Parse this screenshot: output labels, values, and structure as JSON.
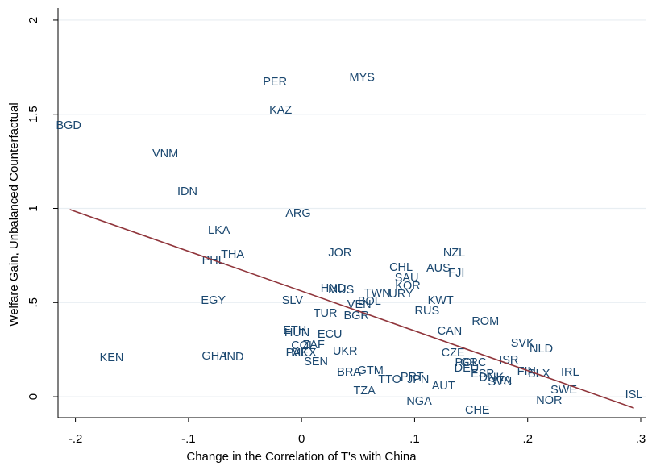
{
  "chart_data": {
    "type": "scatter",
    "x_label": "Change in the Correlation of T's with China",
    "y_label": "Welfare Gain, Unbalanced Counterfactual",
    "xlim": [
      -0.2154,
      0.305
    ],
    "ylim": [
      -0.111,
      2.064
    ],
    "xticks": [
      {
        "value": -0.2,
        "label": "-.2"
      },
      {
        "value": -0.1,
        "label": "-.1"
      },
      0,
      {
        "value": 0.1,
        "label": ".1"
      },
      {
        "value": 0.2,
        "label": ".2"
      },
      {
        "value": 0.3,
        "label": ".3"
      }
    ],
    "yticks": [
      0,
      {
        "value": 0.5,
        "label": ".5"
      },
      1,
      1.5,
      2
    ],
    "grid": true,
    "color": "#1a476f",
    "fit_line": {
      "color": "#90353b",
      "x": [
        -0.205,
        0.294
      ],
      "y": [
        0.994,
        -0.06
      ]
    },
    "labels": [
      "BGD",
      "PER",
      "MYS",
      "KAZ",
      "VNM",
      "IDN",
      "ARG",
      "LKA",
      "THA",
      "PHL",
      "JOR",
      "NZL",
      "CHL",
      "AUS",
      "FJI",
      "SAU",
      "KOR",
      "HND",
      "MUS",
      "TWN",
      "URY",
      "BOL",
      "VEN",
      "SLV",
      "EGY",
      "KWT",
      "RUS",
      "TUR",
      "BGR",
      "ROM",
      "CAN",
      "ETH",
      "HUN",
      "ECU",
      "SVK",
      "NLD",
      "COL",
      "ZAF",
      "MEX",
      "PAK",
      "UKR",
      "KEN",
      "GHA",
      "IND",
      "CZE",
      "SEN",
      "ISR",
      "POL",
      "GRC",
      "DEU",
      "ESP",
      "BRA",
      "GTM",
      "IRL",
      "FIN",
      "BLX",
      "TTO",
      "PRT",
      "JPN",
      "SVN",
      "DNK",
      "ITA",
      "AUT",
      "TZA",
      "SWE",
      "ISL",
      "NOR",
      "NGA",
      "CHE"
    ],
    "x": [
      -0.206,
      -0.0235,
      0.0535,
      -0.0185,
      -0.1205,
      -0.101,
      -0.003,
      -0.073,
      -0.061,
      -0.078,
      0.034,
      0.135,
      0.088,
      0.121,
      0.137,
      0.093,
      0.094,
      0.028,
      0.035,
      0.067,
      0.088,
      0.06,
      0.051,
      -0.008,
      -0.078,
      0.123,
      0.111,
      0.021,
      0.0485,
      0.1626,
      0.131,
      -0.006,
      -0.004,
      0.025,
      0.1954,
      0.212,
      0.0014,
      0.0107,
      0.002,
      -0.004,
      0.0385,
      -0.168,
      -0.077,
      -0.06,
      0.134,
      0.0128,
      0.1833,
      0.146,
      0.152,
      0.146,
      0.16,
      0.042,
      0.061,
      0.2375,
      0.199,
      0.21,
      0.078,
      0.0977,
      0.103,
      0.1755,
      0.168,
      0.178,
      0.1255,
      0.0556,
      0.232,
      0.294,
      0.219,
      0.104,
      0.1555
    ],
    "y": [
      1.439,
      1.67,
      1.692,
      1.52,
      1.289,
      1.088,
      0.972,
      0.882,
      0.754,
      0.724,
      0.762,
      0.762,
      0.685,
      0.681,
      0.655,
      0.63,
      0.587,
      0.574,
      0.565,
      0.548,
      0.544,
      0.505,
      0.488,
      0.51,
      0.51,
      0.51,
      0.454,
      0.441,
      0.428,
      0.398,
      0.347,
      0.351,
      0.338,
      0.33,
      0.283,
      0.253,
      0.27,
      0.274,
      0.231,
      0.231,
      0.24,
      0.206,
      0.214,
      0.21,
      0.231,
      0.184,
      0.193,
      0.18,
      0.18,
      0.15,
      0.12,
      0.128,
      0.137,
      0.128,
      0.133,
      0.12,
      0.09,
      0.103,
      0.09,
      0.077,
      0.1,
      0.085,
      0.056,
      0.03,
      0.034,
      0.009,
      -0.021,
      -0.026,
      -0.073
    ]
  }
}
